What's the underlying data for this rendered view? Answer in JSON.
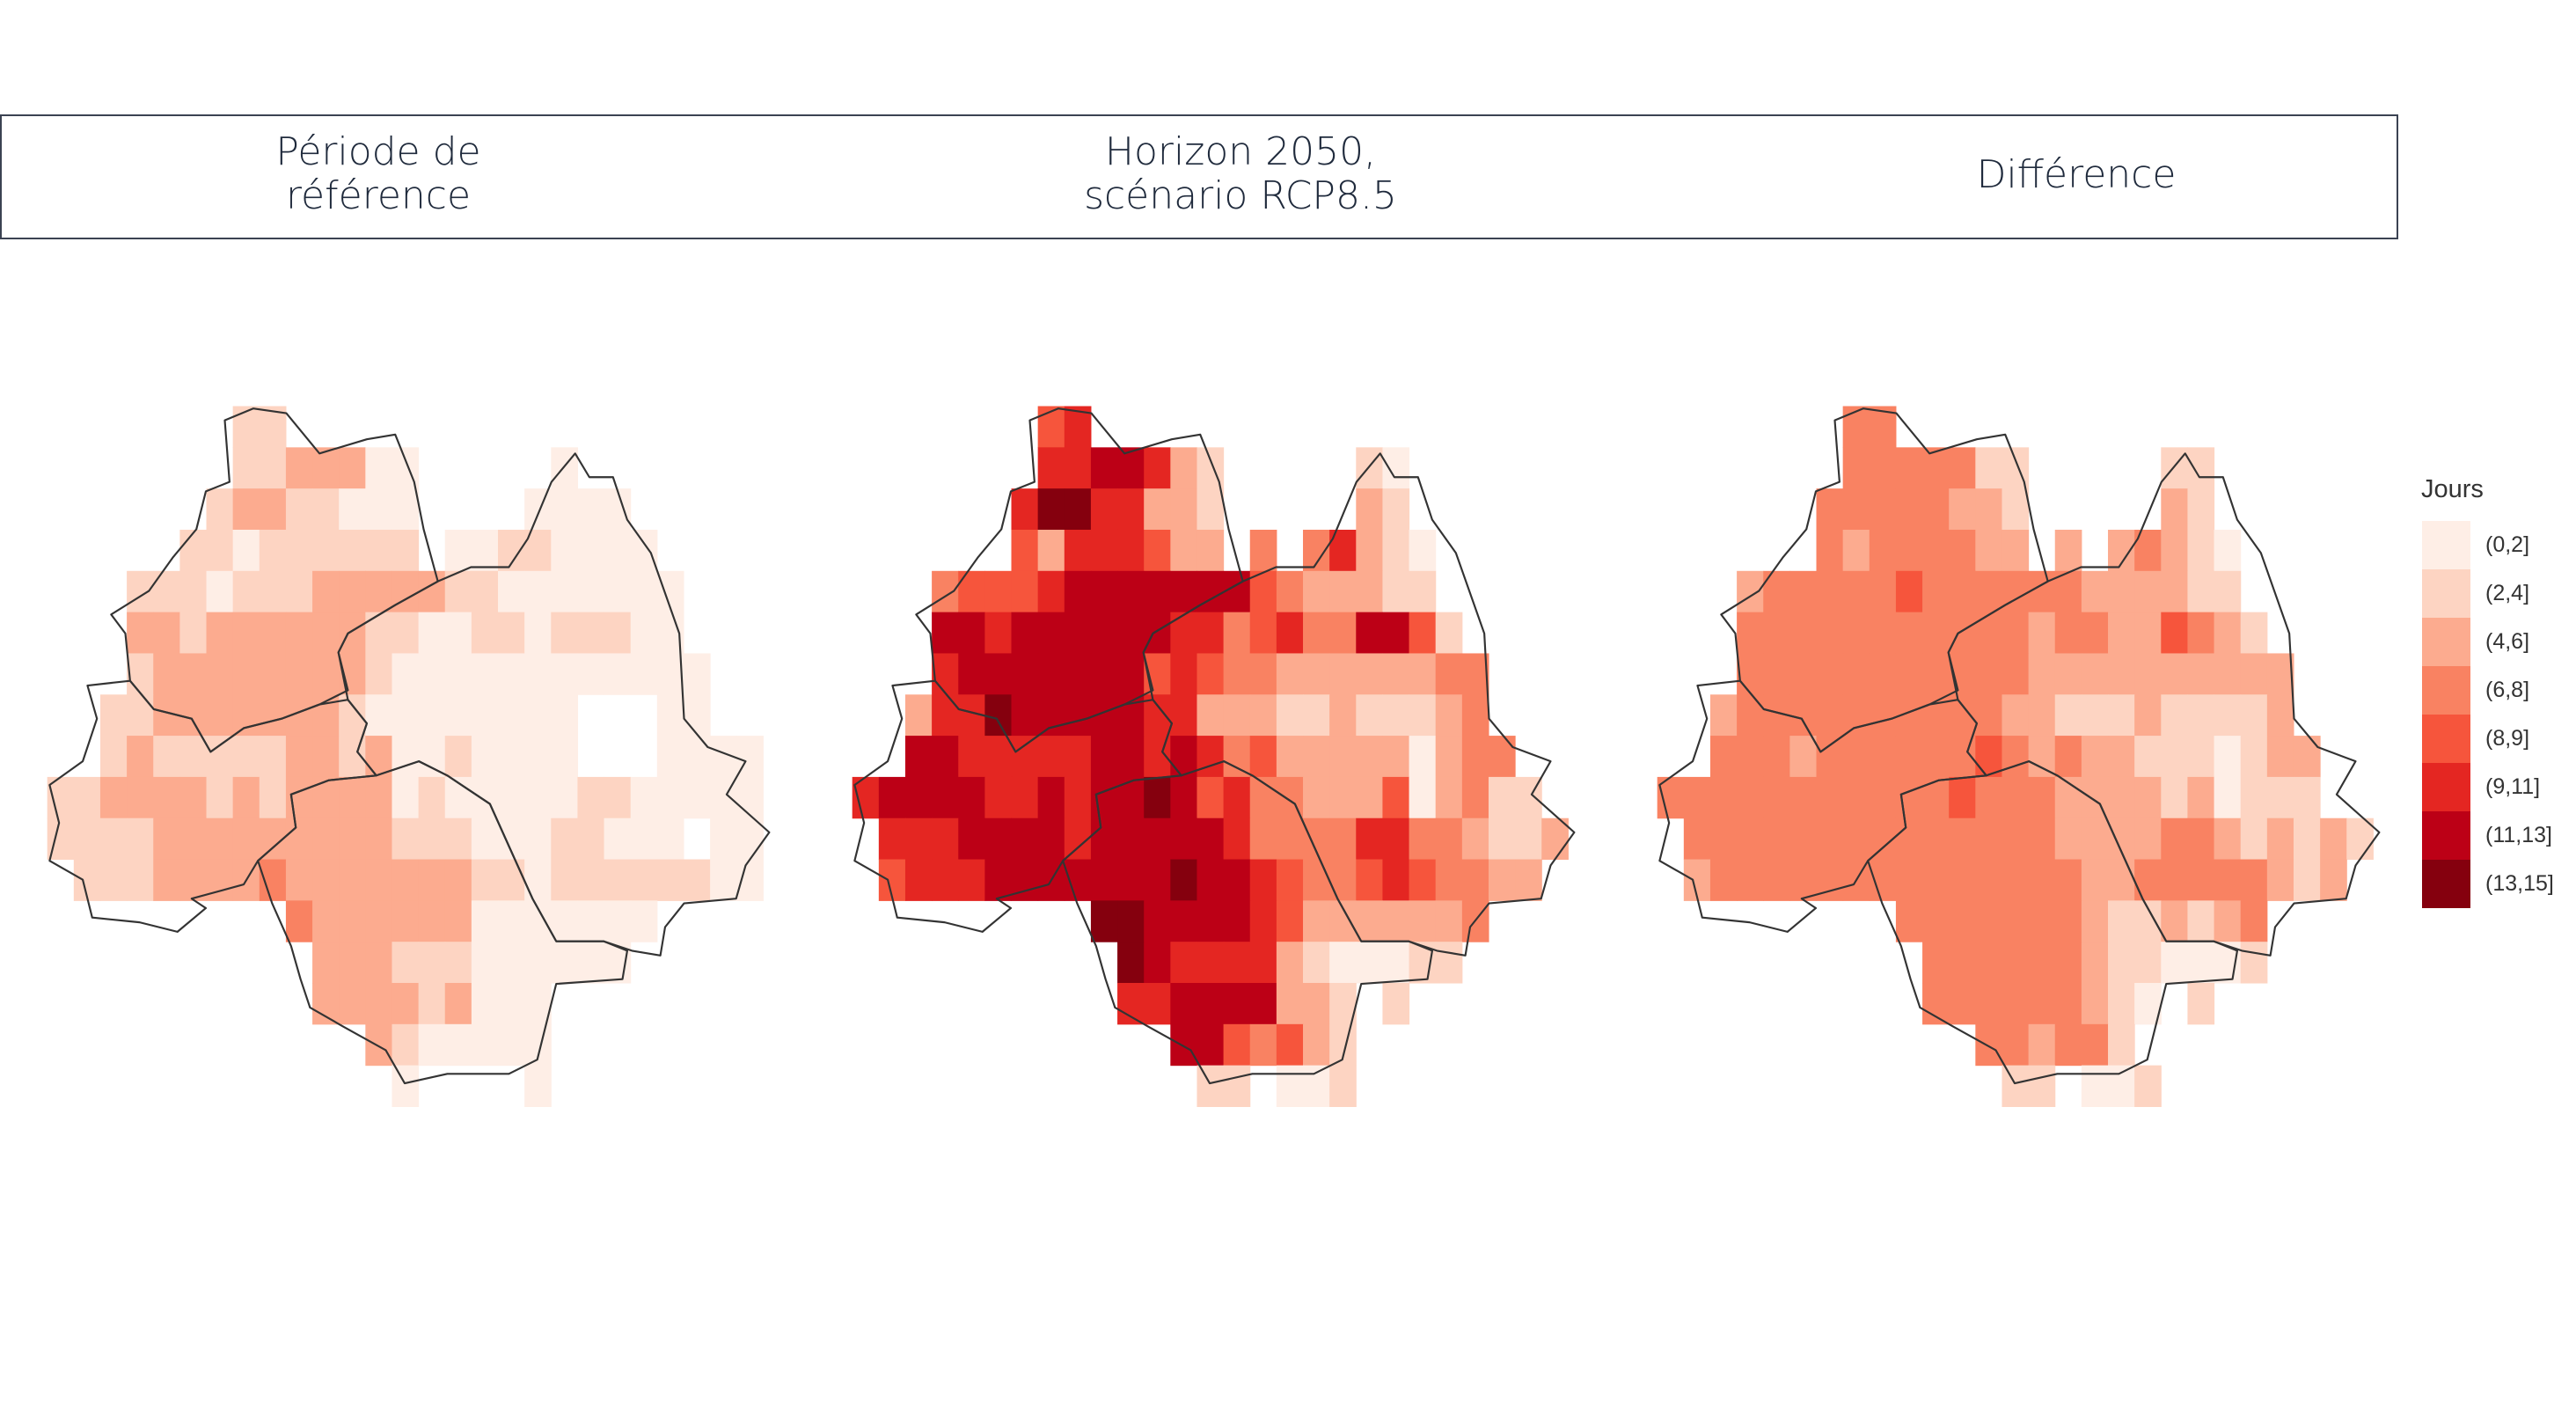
{
  "panels": [
    {
      "title_lines": [
        "Période de",
        "référence"
      ]
    },
    {
      "title_lines": [
        "Horizon 2050,",
        "scénario RCP8.5"
      ]
    },
    {
      "title_lines": [
        "Différence"
      ]
    }
  ],
  "legend": {
    "title": "Jours",
    "classes": [
      {
        "label": "(0,2]",
        "color": "#feeee6"
      },
      {
        "label": "(2,4]",
        "color": "#fdd4c2"
      },
      {
        "label": "(4,6]",
        "color": "#fcab8f"
      },
      {
        "label": "(6,8]",
        "color": "#f98262"
      },
      {
        "label": "(8,9]",
        "color": "#f6553c"
      },
      {
        "label": "(9,11]",
        "color": "#e42622"
      },
      {
        "label": "(11,13]",
        "color": "#bc0016"
      },
      {
        "label": "(13,15]",
        "color": "#85000e"
      }
    ]
  },
  "outline_color": "#333333",
  "maps": [
    {
      "name": "reference",
      "grid": [
        ".......11..................",
        ".......1122200.....0.......",
        "......12211000....0000.....",
        ".....110111111.00110000....",
        "...111011122222110000000...",
        "...221222222110011011100...",
        "...1222222221000000000000..",
        "..112222222100000000...00..",
        "..121111122120010000...0000",
        "112222121222201000001100000",
        "111122222222211100011000.00",
        ".11122223222222211011111100",
        ".........32222220000000....",
        "..........222111000000.....",
        "..........222212000........",
        "............2100000........",
        ".............0....0........"
      ]
    },
    {
      "name": "horizon-2050-rcp85",
      "grid": [
        ".......45..................",
        ".......5566521.....10......",
        "......57755221.....21......",
        "......42555422.3.35210.....",
        "...3444566666664322211.....",
        "...66566666655345336641....",
        "...566666664543322222233...",
        "..2557666665522211211123...",
        "..66555556656534222220233..",
        "56666556566764533222402311.",
        ".55566665666665333355332112",
        ".4555666666676654334543322.",
        ".........776666542222223...",
        "..........7655552100011....",
        "..........556666221.1......",
        "............6643421........",
        ".............11.001........"
      ]
    },
    {
      "name": "difference",
      "grid": [
        ".......33..................",
        ".......3333311.....11......",
        "......33333221.....21......",
        "......32333322.2.23210.....",
        "...2333334333333222211.....",
        "...33333333333233224321....",
        "...333333333332222222222...",
        "..2333333333322111211112...",
        "..33323333334323221110122..",
        "3333333333343332222120111..",
        ".33333333333333222233212121",
        ".2333333333333332233333212.",
        ".........33333332112123....",
        "..........3333332110001....",
        "..........333333210.1......",
        "............332331.........",
        ".............11.001........"
      ]
    }
  ]
}
